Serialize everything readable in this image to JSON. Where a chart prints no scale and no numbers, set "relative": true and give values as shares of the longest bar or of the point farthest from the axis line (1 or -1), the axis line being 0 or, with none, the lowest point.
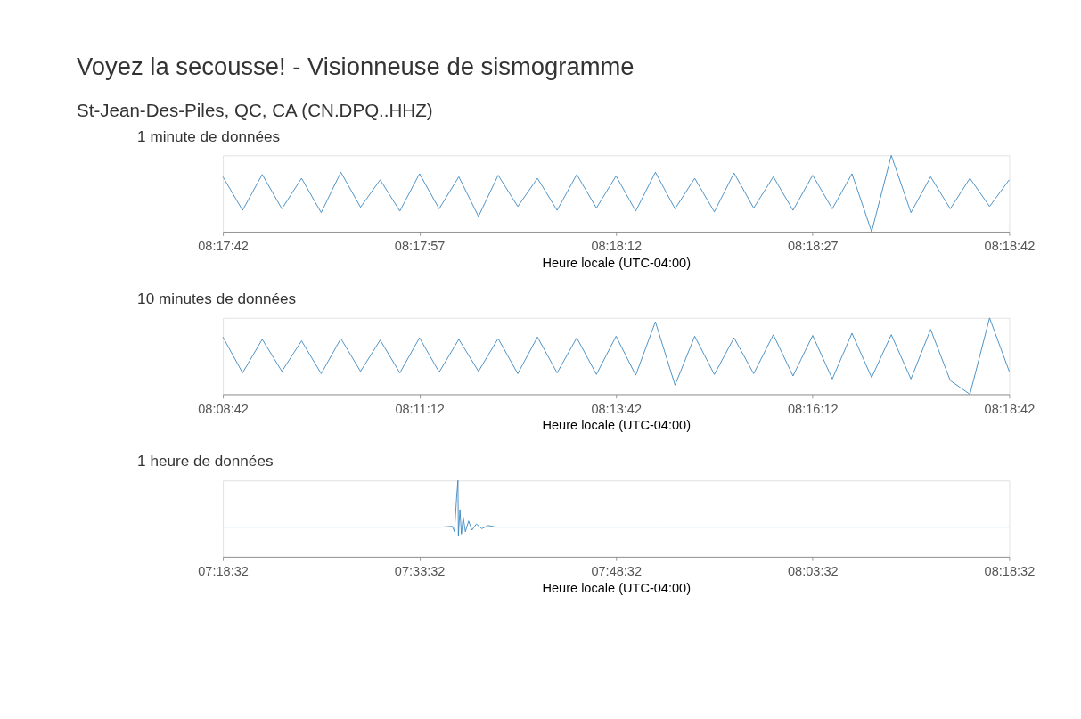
{
  "chart_data": [
    {
      "type": "other",
      "title": "Voyez la secousse! - Visionneuse de sismogramme",
      "subtitle": "St-Jean-Des-Piles, QC, CA (CN.DPQ..HHZ)"
    },
    {
      "type": "line",
      "title": "1 minute de données",
      "xlabel": "Heure locale (UTC-04:00)",
      "relative": true,
      "xlim": [
        8.295,
        8.3116667
      ],
      "xticks": [
        {
          "value": 8.295,
          "label": "08:17:42"
        },
        {
          "value": 8.2991667,
          "label": "08:17:57"
        },
        {
          "value": 8.3033333,
          "label": "08:18:12"
        },
        {
          "value": 8.3075,
          "label": "08:18:27"
        },
        {
          "value": 8.3116667,
          "label": "08:18:42"
        }
      ],
      "x": [
        8.295,
        8.2954167,
        8.2958333,
        8.29625,
        8.2966667,
        8.2970833,
        8.2975,
        8.2979167,
        8.2983333,
        8.29875,
        8.2991667,
        8.2995833,
        8.3,
        8.3004167,
        8.3008333,
        8.30125,
        8.3016667,
        8.3020833,
        8.3025,
        8.3029167,
        8.3033333,
        8.30375,
        8.3041667,
        8.3045833,
        8.305,
        8.3054167,
        8.3058333,
        8.30625,
        8.3066667,
        8.3070833,
        8.3075,
        8.3079167,
        8.3083333,
        8.30875,
        8.3091667,
        8.3095833,
        8.31,
        8.3104167,
        8.3108333,
        8.31125,
        8.3116667
      ],
      "series": [
        {
          "color": "#3182bd",
          "values": [
            0.72,
            0.28,
            0.75,
            0.3,
            0.7,
            0.25,
            0.78,
            0.32,
            0.68,
            0.27,
            0.76,
            0.3,
            0.72,
            0.2,
            0.74,
            0.33,
            0.7,
            0.28,
            0.75,
            0.31,
            0.73,
            0.27,
            0.78,
            0.3,
            0.7,
            0.26,
            0.77,
            0.31,
            0.72,
            0.28,
            0.74,
            0.3,
            0.76,
            0.0,
            1.0,
            0.25,
            0.72,
            0.3,
            0.7,
            0.33,
            0.68
          ]
        }
      ]
    },
    {
      "type": "line",
      "title": "10 minutes de données",
      "xlabel": "Heure locale (UTC-04:00)",
      "relative": true,
      "xlim": [
        8.145,
        8.3116667
      ],
      "xticks": [
        {
          "value": 8.145,
          "label": "08:08:42"
        },
        {
          "value": 8.1866667,
          "label": "08:11:12"
        },
        {
          "value": 8.2283333,
          "label": "08:13:42"
        },
        {
          "value": 8.27,
          "label": "08:16:12"
        },
        {
          "value": 8.3116667,
          "label": "08:18:42"
        }
      ],
      "x": [
        8.145,
        8.1491667,
        8.1533333,
        8.1575,
        8.1616667,
        8.1658333,
        8.17,
        8.1741667,
        8.1783333,
        8.1825,
        8.1866667,
        8.1908333,
        8.195,
        8.1991667,
        8.2033333,
        8.2075,
        8.2116667,
        8.2158333,
        8.22,
        8.2241667,
        8.2283333,
        8.2325,
        8.2366667,
        8.2408333,
        8.245,
        8.2491667,
        8.2533333,
        8.2575,
        8.2616667,
        8.2658333,
        8.27,
        8.2741667,
        8.2783333,
        8.2825,
        8.2866667,
        8.2908333,
        8.295,
        8.2991667,
        8.3033333,
        8.3075,
        8.3116667
      ],
      "series": [
        {
          "color": "#3182bd",
          "values": [
            0.75,
            0.28,
            0.72,
            0.3,
            0.7,
            0.27,
            0.73,
            0.3,
            0.71,
            0.28,
            0.74,
            0.29,
            0.72,
            0.3,
            0.73,
            0.27,
            0.75,
            0.28,
            0.74,
            0.26,
            0.76,
            0.25,
            0.95,
            0.12,
            0.76,
            0.26,
            0.74,
            0.27,
            0.78,
            0.24,
            0.77,
            0.2,
            0.8,
            0.22,
            0.78,
            0.2,
            0.85,
            0.18,
            0.0,
            1.0,
            0.3
          ]
        }
      ]
    },
    {
      "type": "line",
      "title": "1 heure de données",
      "xlabel": "Heure locale (UTC-04:00)",
      "relative": true,
      "xlim": [
        7.3088889,
        8.3088889
      ],
      "xticks": [
        {
          "value": 7.3088889,
          "label": "07:18:32"
        },
        {
          "value": 7.5588889,
          "label": "07:33:32"
        },
        {
          "value": 7.8088889,
          "label": "07:48:32"
        },
        {
          "value": 8.0588889,
          "label": "08:03:32"
        },
        {
          "value": 8.3088889,
          "label": "08:18:32"
        }
      ],
      "x": [
        7.3088889,
        7.4755556,
        7.5866667,
        7.6005556,
        7.6033333,
        7.6061111,
        7.6077778,
        7.6083333,
        7.6102778,
        7.6122222,
        7.6144444,
        7.6172222,
        7.6213889,
        7.6255556,
        7.6311111,
        7.6380556,
        7.6463889,
        7.6561111,
        7.8644444,
        8.1422222,
        8.3088889
      ],
      "series": [
        {
          "color": "#3182bd",
          "values": [
            0.39,
            0.39,
            0.39,
            0.4,
            0.33,
            0.78,
            1.0,
            0.27,
            0.62,
            0.3,
            0.52,
            0.33,
            0.47,
            0.35,
            0.43,
            0.37,
            0.41,
            0.39,
            0.39,
            0.39,
            0.39
          ]
        }
      ]
    }
  ]
}
